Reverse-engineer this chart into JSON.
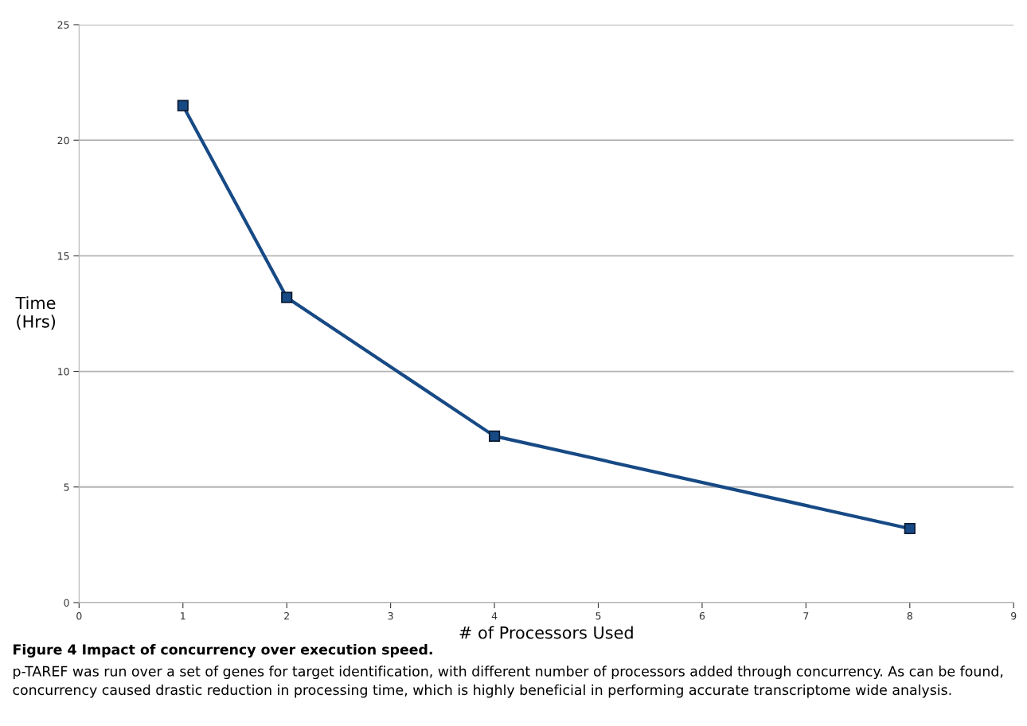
{
  "chart_data": {
    "type": "line",
    "title": "Figure 4 Impact of concurrency over execution speed.",
    "xlabel": "# of Processors Used",
    "ylabel": "Time\n(Hrs)",
    "x": [
      1,
      2,
      4,
      8
    ],
    "series": [
      {
        "color": "#174a85",
        "values": [
          21.5,
          13.2,
          7.2,
          3.2
        ]
      }
    ],
    "xlim": [
      0,
      9
    ],
    "xticks": [
      0,
      1,
      2,
      3,
      4,
      5,
      6,
      7,
      8,
      9
    ],
    "ylim": [
      0,
      25
    ],
    "yticks": [
      0,
      5,
      10,
      15,
      20,
      25
    ],
    "grid": "y",
    "marker": "square",
    "line_style": "solid",
    "annotations": [
      "p-TAREF was run over a set of genes for target identification, with different number of processors added through concurrency. As can be found, concurrency caused drastic reduction in processing time, which is highly beneficial in performing accurate transcriptome wide analysis."
    ]
  }
}
